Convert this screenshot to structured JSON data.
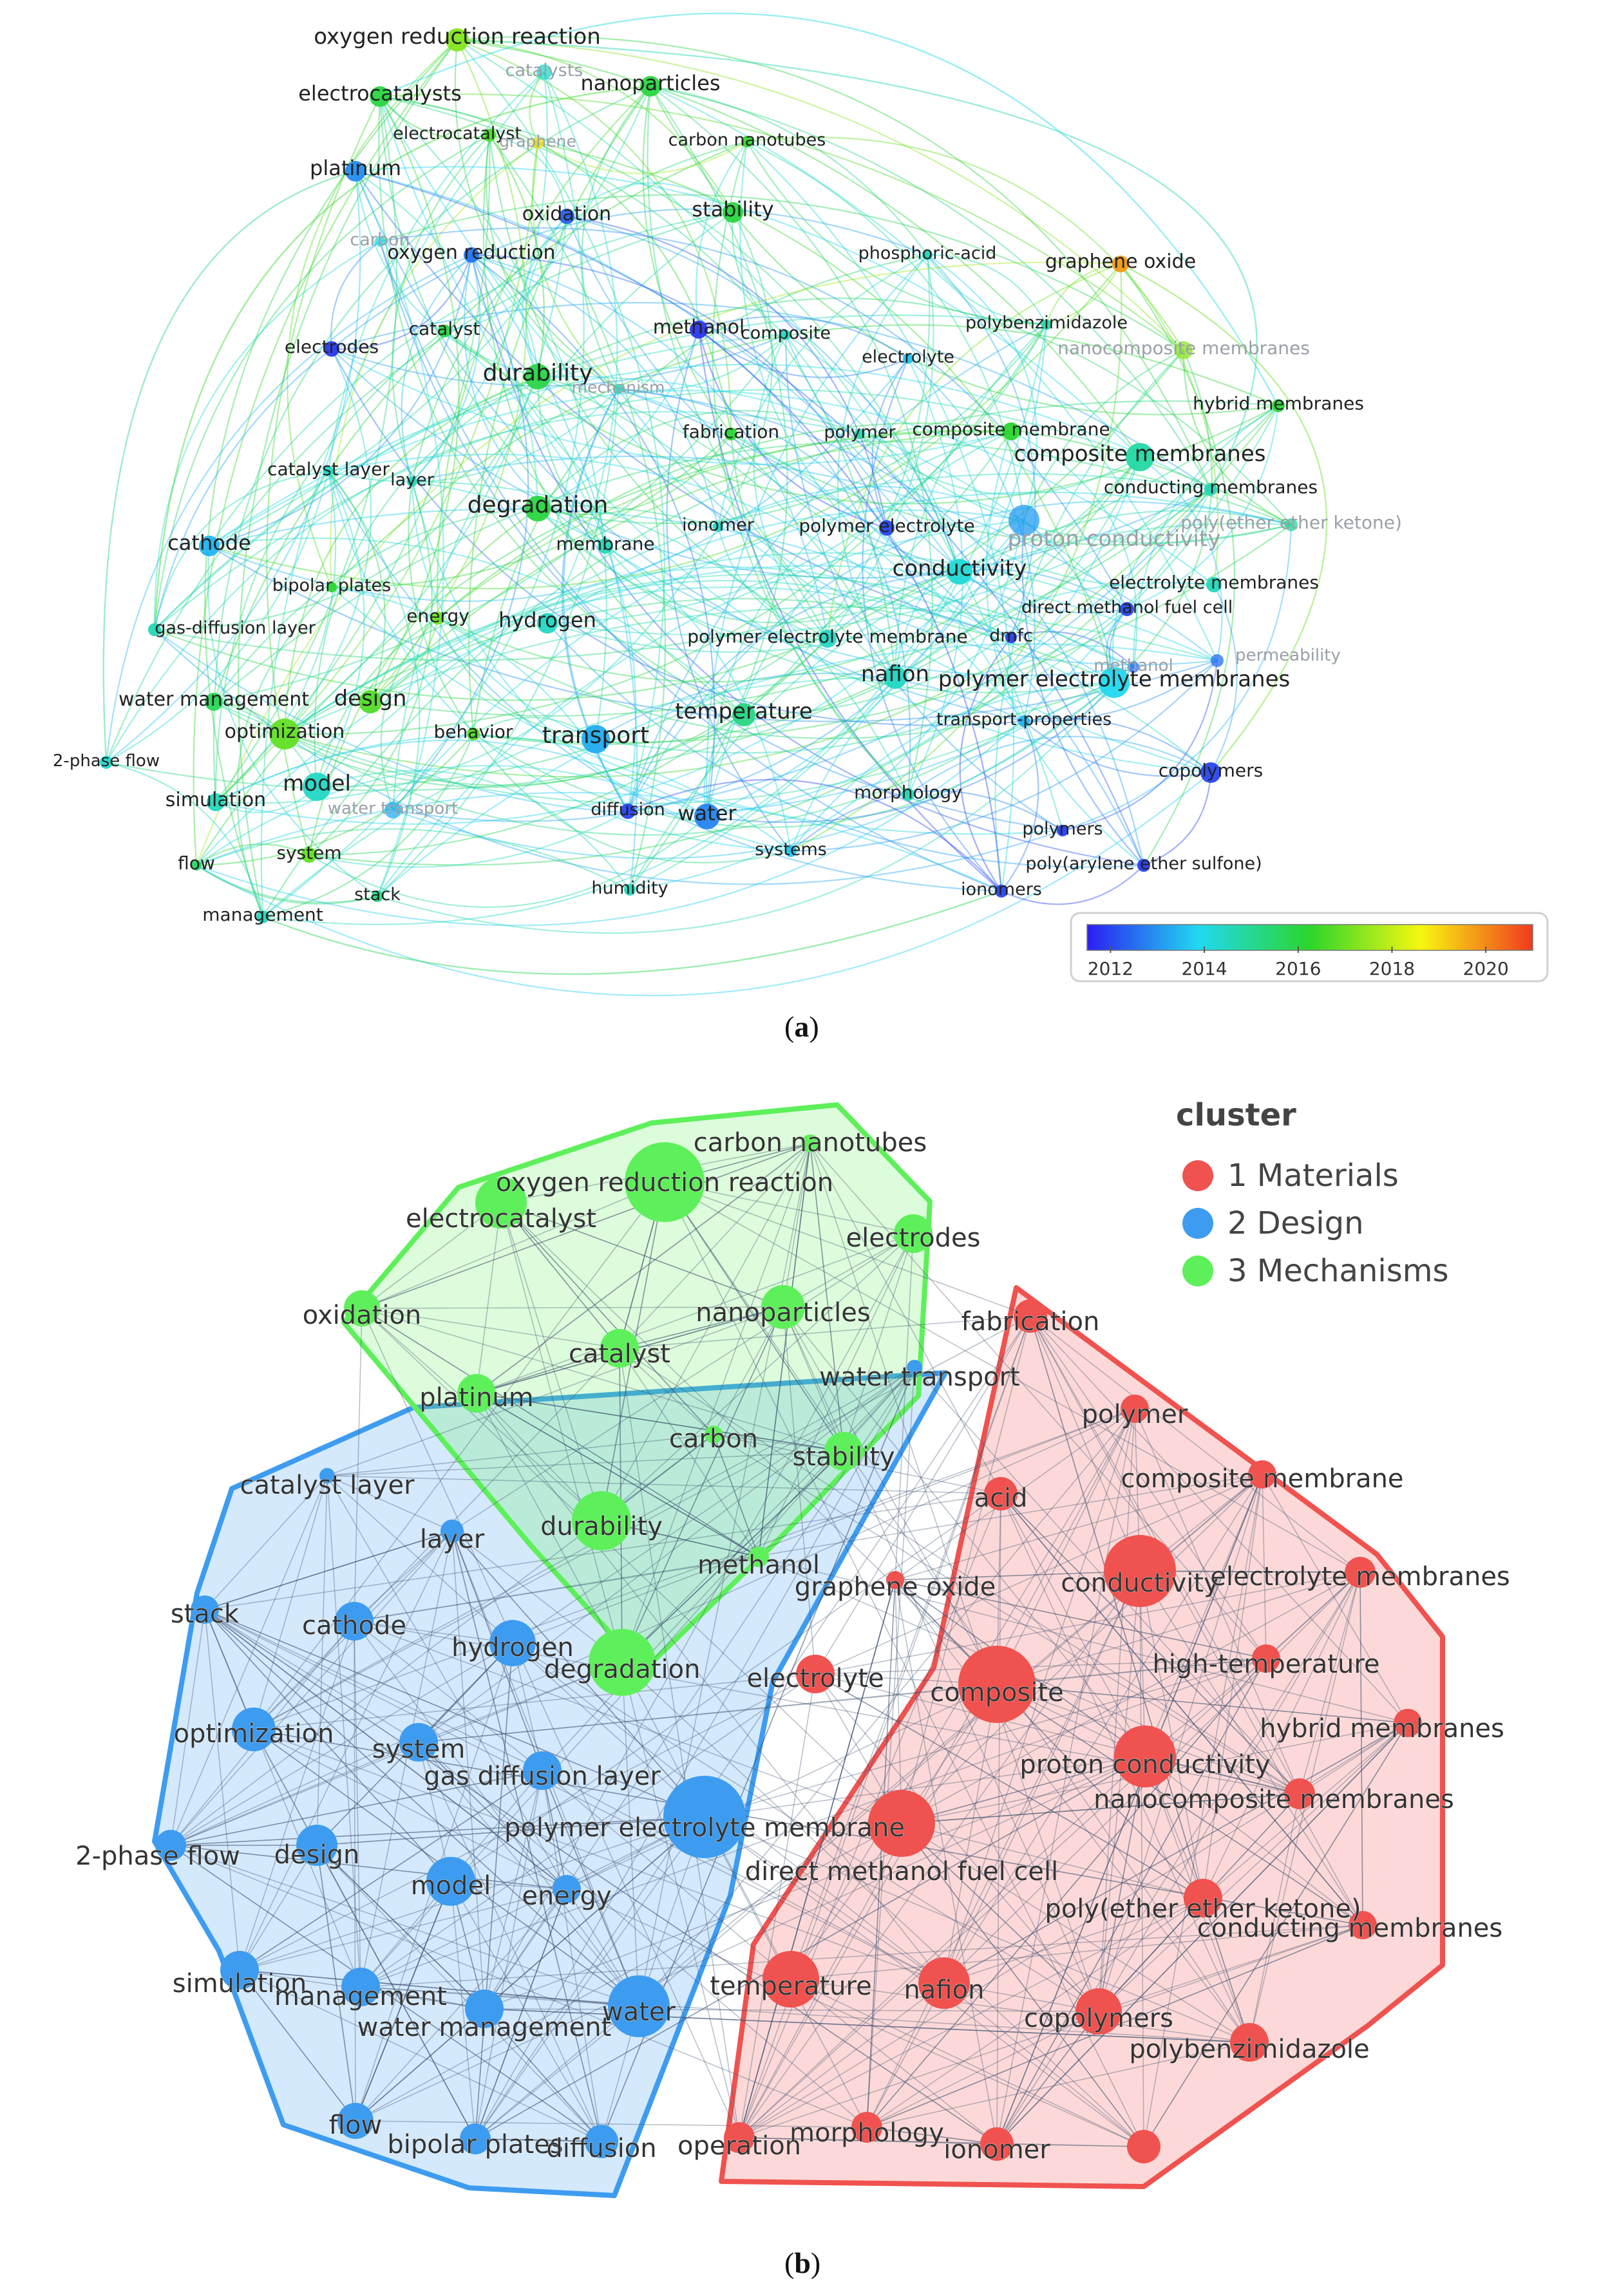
{
  "panel_a": {
    "caption": {
      "open": "(",
      "letter": "a",
      "close": ")"
    },
    "colorbar": {
      "ticks": [
        "2012",
        "2014",
        "2016",
        "2018",
        "2020"
      ],
      "colors": [
        "#2b1ef0",
        "#21d9f0",
        "#2bd62b",
        "#f7f710",
        "#f03a1e"
      ]
    },
    "nodes": [
      {
        "label": "oxygen reduction reaction",
        "year": 2017.3
      },
      {
        "label": "catalysts",
        "year": 2014.3,
        "faded": true
      },
      {
        "label": "electrocatalysts",
        "year": 2016.0
      },
      {
        "label": "nanoparticles",
        "year": 2016.0
      },
      {
        "label": "electrocatalyst",
        "year": 2016.6
      },
      {
        "label": "graphene",
        "year": 2019.0,
        "faded": true
      },
      {
        "label": "carbon nanotubes",
        "year": 2016.4
      },
      {
        "label": "platinum",
        "year": 2012.9
      },
      {
        "label": "oxidation",
        "year": 2012.3
      },
      {
        "label": "stability",
        "year": 2016.0
      },
      {
        "label": "carbon",
        "year": 2014.0,
        "faded": true
      },
      {
        "label": "oxygen reduction",
        "year": 2012.6
      },
      {
        "label": "phosphoric-acid",
        "year": 2014.5
      },
      {
        "label": "graphene oxide",
        "year": 2019.8
      },
      {
        "label": "catalyst",
        "year": 2016.0
      },
      {
        "label": "methanol",
        "year": 2011.8
      },
      {
        "label": "composite",
        "year": 2014.4
      },
      {
        "label": "electrodes",
        "year": 2011.8
      },
      {
        "label": "polybenzimidazole",
        "year": 2014.7
      },
      {
        "label": "nanocomposite membranes",
        "year": 2017.4,
        "faded": true
      },
      {
        "label": "electrolyte",
        "year": 2013.6
      },
      {
        "label": "durability",
        "year": 2015.9
      },
      {
        "label": "mechanism",
        "year": 2014.5,
        "faded": true
      },
      {
        "label": "hybrid membranes",
        "year": 2016.1
      },
      {
        "label": "composite membrane",
        "year": 2016.2
      },
      {
        "label": "fabrication",
        "year": 2016.1
      },
      {
        "label": "polymer",
        "year": 2014.7
      },
      {
        "label": "composite membranes",
        "year": 2014.8
      },
      {
        "label": "catalyst layer",
        "year": 2014.4
      },
      {
        "label": "layer",
        "year": 2014.5
      },
      {
        "label": "conducting membranes",
        "year": 2014.6
      },
      {
        "label": "degradation",
        "year": 2016.0
      },
      {
        "label": "poly(ether ether ketone)",
        "year": 2014.9,
        "faded": true
      },
      {
        "label": "cathode",
        "year": 2013.4
      },
      {
        "label": "ionomer",
        "year": 2014.4
      },
      {
        "label": "polymer electrolyte",
        "year": 2012.0
      },
      {
        "label": "proton conductivity",
        "year": 2013.1,
        "faded": true
      },
      {
        "label": "membrane",
        "year": 2014.6
      },
      {
        "label": "conductivity",
        "year": 2014.2
      },
      {
        "label": "bipolar plates",
        "year": 2016.2
      },
      {
        "label": "electrolyte membranes",
        "year": 2014.5
      },
      {
        "label": "energy",
        "year": 2017.0
      },
      {
        "label": "direct methanol fuel cell",
        "year": 2012.0
      },
      {
        "label": "gas-diffusion layer",
        "year": 2014.6
      },
      {
        "label": "hydrogen",
        "year": 2014.4
      },
      {
        "label": "polymer electrolyte membrane",
        "year": 2014.4
      },
      {
        "label": "dmfc",
        "year": 2011.9
      },
      {
        "label": "permeability",
        "year": 2012.5,
        "faded": true
      },
      {
        "label": "methanol",
        "year": 2012.5,
        "faded": true
      },
      {
        "label": "nafion",
        "year": 2014.4
      },
      {
        "label": "polymer electrolyte membranes",
        "year": 2013.9
      },
      {
        "label": "water management",
        "year": 2015.7
      },
      {
        "label": "design",
        "year": 2016.7
      },
      {
        "label": "temperature",
        "year": 2015.2
      },
      {
        "label": "optimization",
        "year": 2016.9
      },
      {
        "label": "behavior",
        "year": 2016.7
      },
      {
        "label": "transport",
        "year": 2013.3
      },
      {
        "label": "transport-properties",
        "year": 2013.4
      },
      {
        "label": "2-phase flow",
        "year": 2014.3
      },
      {
        "label": "model",
        "year": 2014.4
      },
      {
        "label": "copolymers",
        "year": 2012.0
      },
      {
        "label": "simulation",
        "year": 2014.5
      },
      {
        "label": "water transport",
        "year": 2013.3,
        "faded": true
      },
      {
        "label": "morphology",
        "year": 2014.6
      },
      {
        "label": "diffusion",
        "year": 2012.0
      },
      {
        "label": "water",
        "year": 2012.8
      },
      {
        "label": "system",
        "year": 2016.9
      },
      {
        "label": "polymers",
        "year": 2011.9
      },
      {
        "label": "flow",
        "year": 2015.5
      },
      {
        "label": "systems",
        "year": 2013.6
      },
      {
        "label": "poly(arylene ether sulfone)",
        "year": 2011.9
      },
      {
        "label": "stack",
        "year": 2015.2
      },
      {
        "label": "humidity",
        "year": 2014.5
      },
      {
        "label": "ionomers",
        "year": 2012.0
      },
      {
        "label": "management",
        "year": 2014.5
      }
    ]
  },
  "panel_b": {
    "caption": {
      "open": "(",
      "letter": "b",
      "close": ")"
    },
    "legend": {
      "title": "cluster",
      "items": [
        {
          "label": "1 Materials",
          "color": "#f0524f"
        },
        {
          "label": "2 Design",
          "color": "#3d9cf0"
        },
        {
          "label": "3 Mechanisms",
          "color": "#5ef05a"
        }
      ]
    },
    "nodes": [
      {
        "label": "carbon nanotubes",
        "cluster": 3
      },
      {
        "label": "oxygen reduction reaction",
        "cluster": 3
      },
      {
        "label": "electrocatalyst",
        "cluster": 3
      },
      {
        "label": "electrodes",
        "cluster": 3
      },
      {
        "label": "oxidation",
        "cluster": 3
      },
      {
        "label": "nanoparticles",
        "cluster": 3
      },
      {
        "label": "fabrication",
        "cluster": 1
      },
      {
        "label": "catalyst",
        "cluster": 3
      },
      {
        "label": "water transport",
        "cluster": 2
      },
      {
        "label": "platinum",
        "cluster": 3
      },
      {
        "label": "polymer",
        "cluster": 1
      },
      {
        "label": "carbon",
        "cluster": 3
      },
      {
        "label": "stability",
        "cluster": 3
      },
      {
        "label": "catalyst layer",
        "cluster": 2
      },
      {
        "label": "composite membrane",
        "cluster": 1
      },
      {
        "label": "acid",
        "cluster": 1
      },
      {
        "label": "durability",
        "cluster": 3
      },
      {
        "label": "layer",
        "cluster": 2
      },
      {
        "label": "methanol",
        "cluster": 3
      },
      {
        "label": "graphene oxide",
        "cluster": 1
      },
      {
        "label": "conductivity",
        "cluster": 1
      },
      {
        "label": "electrolyte membranes",
        "cluster": 1
      },
      {
        "label": "stack",
        "cluster": 2
      },
      {
        "label": "cathode",
        "cluster": 2
      },
      {
        "label": "hydrogen",
        "cluster": 2
      },
      {
        "label": "degradation",
        "cluster": 3
      },
      {
        "label": "electrolyte",
        "cluster": 1
      },
      {
        "label": "high-temperature",
        "cluster": 1
      },
      {
        "label": "composite",
        "cluster": 1
      },
      {
        "label": "optimization",
        "cluster": 2
      },
      {
        "label": "system",
        "cluster": 2
      },
      {
        "label": "hybrid membranes",
        "cluster": 1
      },
      {
        "label": "gas diffusion layer",
        "cluster": 2
      },
      {
        "label": "proton conductivity",
        "cluster": 1
      },
      {
        "label": "nanocomposite membranes",
        "cluster": 1
      },
      {
        "label": "polymer electrolyte membrane",
        "cluster": 2
      },
      {
        "label": "2-phase flow",
        "cluster": 2
      },
      {
        "label": "design",
        "cluster": 2
      },
      {
        "label": "direct methanol fuel cell",
        "cluster": 1
      },
      {
        "label": "model",
        "cluster": 2
      },
      {
        "label": "energy",
        "cluster": 2
      },
      {
        "label": "poly(ether ether ketone)",
        "cluster": 1
      },
      {
        "label": "conducting membranes",
        "cluster": 1
      },
      {
        "label": "simulation",
        "cluster": 2
      },
      {
        "label": "temperature",
        "cluster": 1
      },
      {
        "label": "nafion",
        "cluster": 1
      },
      {
        "label": "management",
        "cluster": 2
      },
      {
        "label": "water management",
        "cluster": 2
      },
      {
        "label": "water",
        "cluster": 2
      },
      {
        "label": "copolymers",
        "cluster": 1
      },
      {
        "label": "polybenzimidazole",
        "cluster": 1
      },
      {
        "label": "flow",
        "cluster": 2
      },
      {
        "label": "bipolar plates",
        "cluster": 2
      },
      {
        "label": "diffusion",
        "cluster": 2
      },
      {
        "label": "operation",
        "cluster": 1
      },
      {
        "label": "morphology",
        "cluster": 1
      },
      {
        "label": "ionomer",
        "cluster": 1
      },
      {
        "label": "",
        "cluster": 1
      }
    ]
  }
}
